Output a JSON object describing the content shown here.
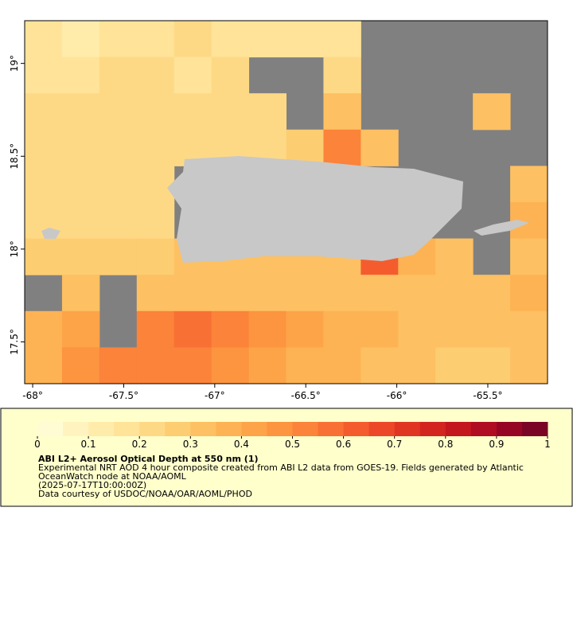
{
  "map": {
    "lon_lim": [
      -68.044,
      -65.172
    ],
    "lat_lim": [
      17.275,
      19.23
    ],
    "lon_ticks": [
      {
        "value": -68,
        "label": "-68°"
      },
      {
        "value": -67.5,
        "label": "-67.5°"
      },
      {
        "value": -67,
        "label": "-67°"
      },
      {
        "value": -66.5,
        "label": "-66.5°"
      },
      {
        "value": -66,
        "label": "-66°"
      },
      {
        "value": -65.5,
        "label": "-65.5°"
      }
    ],
    "lat_ticks": [
      {
        "value": 17.5,
        "label": "17.5°"
      },
      {
        "value": 18,
        "label": "18°"
      },
      {
        "value": 18.5,
        "label": "18.5°"
      },
      {
        "value": 19,
        "label": "19°"
      }
    ],
    "grid": [
      [
        0.15,
        0.12,
        0.15,
        0.18,
        0.2,
        0.15,
        0.15,
        0.15,
        0.15,
        null,
        null,
        null,
        null,
        null
      ],
      [
        0.15,
        0.18,
        0.2,
        0.2,
        0.18,
        0.2,
        null,
        null,
        0.2,
        null,
        null,
        null,
        null,
        null
      ],
      [
        0.2,
        0.2,
        0.2,
        0.2,
        0.2,
        0.2,
        0.2,
        null,
        0.3,
        null,
        null,
        null,
        0.3,
        null
      ],
      [
        0.2,
        0.2,
        0.2,
        0.2,
        0.2,
        0.2,
        0.2,
        0.25,
        0.5,
        0.3,
        null,
        null,
        null,
        null
      ],
      [
        0.2,
        0.2,
        0.2,
        0.2,
        null,
        null,
        null,
        null,
        null,
        null,
        null,
        null,
        null,
        0.3
      ],
      [
        0.2,
        0.2,
        0.2,
        0.2,
        null,
        null,
        null,
        null,
        null,
        null,
        null,
        null,
        null,
        0.35
      ],
      [
        0.25,
        0.25,
        0.25,
        0.25,
        0.3,
        0.3,
        0.3,
        0.3,
        0.3,
        0.6,
        0.35,
        0.3,
        null,
        0.3
      ],
      [
        null,
        0.3,
        null,
        0.3,
        0.3,
        0.3,
        0.3,
        0.3,
        0.3,
        0.3,
        0.3,
        0.3,
        0.3,
        0.35
      ],
      [
        0.35,
        0.4,
        null,
        0.5,
        0.55,
        0.5,
        0.45,
        0.4,
        0.35,
        0.35,
        0.3,
        0.3,
        0.3,
        0.3
      ],
      [
        0.35,
        0.45,
        0.5,
        0.5,
        0.5,
        0.45,
        0.4,
        0.35,
        0.35,
        0.3,
        0.3,
        0.25,
        0.25,
        0.3
      ]
    ]
  },
  "colorbar": {
    "clim": [
      0,
      1
    ],
    "colors": [
      "#fffcd4",
      "#fff4c0",
      "#ffecaa",
      "#ffe398",
      "#fed985",
      "#fdcd72",
      "#fdc062",
      "#fdb354",
      "#fda448",
      "#fc9440",
      "#fb833a",
      "#f97034",
      "#f45c2e",
      "#ec4729",
      "#e13524",
      "#d42420",
      "#c4161e",
      "#b00d22",
      "#960624",
      "#7a0425"
    ],
    "ticks": [
      0,
      0.1,
      0.2,
      0.3,
      0.4,
      0.5,
      0.6,
      0.7,
      0.8,
      0.9,
      1
    ]
  },
  "info": {
    "title": "ABI L2+ Aerosol Optical Depth at 550 nm (1)",
    "lines": [
      "Experimental NRT AOD 4 hour composite created from ABI L2 data from GOES-19. Fields generated by Atlantic",
      "OceanWatch node at NOAA/AOML",
      "(2025-07-17T10:00:00Z)",
      "Data courtesy of USDOC/NOAA/OAR/AOML/PHOD"
    ]
  }
}
